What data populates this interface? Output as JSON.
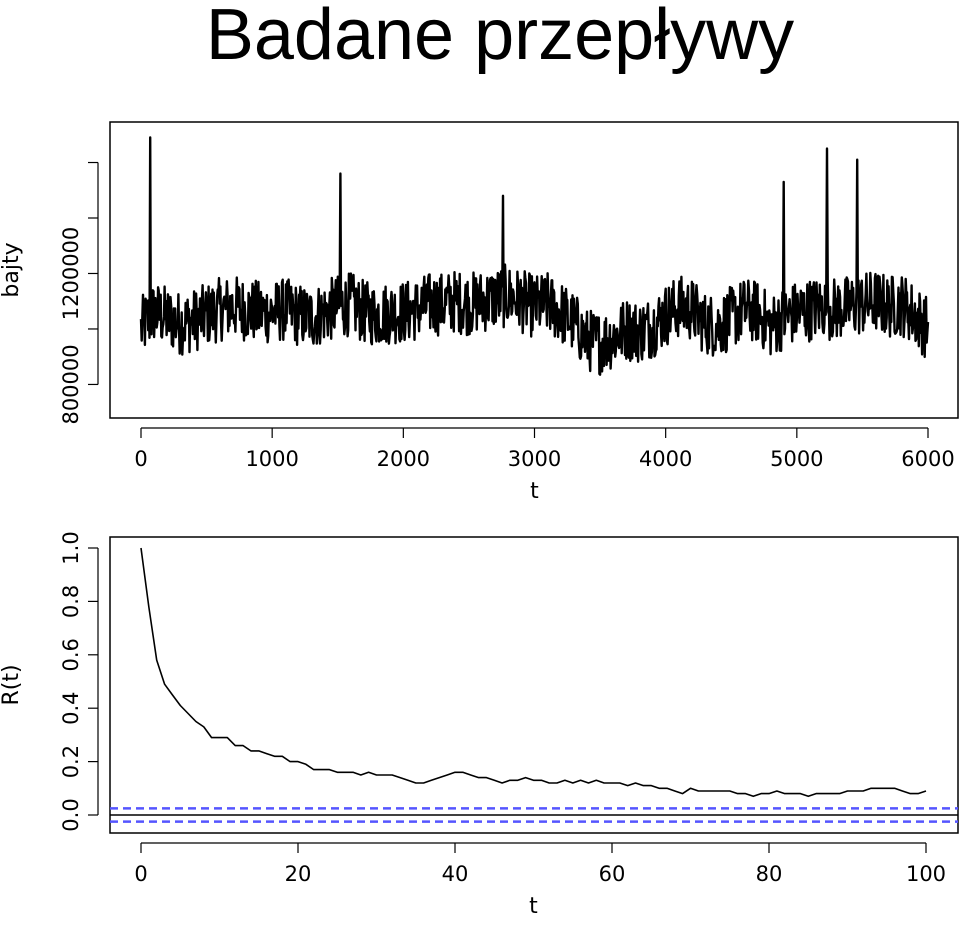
{
  "title": "Badane przepływy",
  "chart_data": [
    {
      "type": "line",
      "xlabel": "t",
      "ylabel": "bajty",
      "xlim": [
        0,
        6000
      ],
      "ylim": [
        780000,
        1400000
      ],
      "x_ticks": [
        0,
        1000,
        2000,
        3000,
        4000,
        5000,
        6000
      ],
      "y_ticks": [
        800000,
        1000000,
        1200000,
        1400000,
        1600000
      ],
      "y_tick_labels": [
        "800000",
        "",
        "1200000",
        "",
        ""
      ],
      "series": [
        {
          "x": [
            0,
            100,
            200,
            300,
            400,
            500,
            600,
            700,
            800,
            900,
            1000,
            1100,
            1200,
            1300,
            1400,
            1500,
            1600,
            1700,
            1800,
            1900,
            2000,
            2100,
            2200,
            2300,
            2400,
            2500,
            2600,
            2700,
            2800,
            2900,
            3000,
            3100,
            3200,
            3300,
            3400,
            3500,
            3600,
            3700,
            3800,
            3900,
            4000,
            4100,
            4200,
            4300,
            4400,
            4500,
            4600,
            4700,
            4800,
            4900,
            5000,
            5100,
            5200,
            5300,
            5400,
            5500,
            5600,
            5700,
            5800,
            5900,
            6000
          ],
          "values": [
            1000000,
            1060000,
            1040000,
            1020000,
            1030000,
            1050000,
            1070000,
            1080000,
            1070000,
            1060000,
            1060000,
            1070000,
            1050000,
            1040000,
            1060000,
            1080000,
            1090000,
            1060000,
            1050000,
            1060000,
            1060000,
            1070000,
            1090000,
            1090000,
            1100000,
            1090000,
            1100000,
            1110000,
            1120000,
            1100000,
            1080000,
            1090000,
            1060000,
            1020000,
            960000,
            950000,
            970000,
            1000000,
            990000,
            1010000,
            1050000,
            1080000,
            1070000,
            1020000,
            1010000,
            1040000,
            1070000,
            1060000,
            1010000,
            1040000,
            1060000,
            1070000,
            1080000,
            1070000,
            1080000,
            1090000,
            1100000,
            1080000,
            1090000,
            1050000,
            1000000
          ],
          "spikes": [
            {
              "x": 70,
              "value": 1690000
            },
            {
              "x": 1520,
              "value": 1560000
            },
            {
              "x": 2760,
              "value": 1480000
            },
            {
              "x": 4900,
              "value": 1530000
            },
            {
              "x": 5230,
              "value": 1650000
            },
            {
              "x": 5460,
              "value": 1610000
            }
          ]
        }
      ]
    },
    {
      "type": "line",
      "xlabel": "t",
      "ylabel": "R(t)",
      "xlim": [
        0,
        100
      ],
      "ylim": [
        0,
        1.0
      ],
      "x_ticks": [
        0,
        20,
        40,
        60,
        80,
        100
      ],
      "y_ticks": [
        0.0,
        0.2,
        0.4,
        0.6,
        0.8,
        1.0
      ],
      "y_tick_labels": [
        "0.0",
        "0.2",
        "0.4",
        "0.6",
        "0.8",
        "1.0"
      ],
      "series": [
        {
          "x": [
            0,
            1,
            2,
            3,
            4,
            5,
            6,
            7,
            8,
            9,
            10,
            11,
            12,
            13,
            14,
            15,
            16,
            17,
            18,
            19,
            20,
            21,
            22,
            23,
            24,
            25,
            26,
            27,
            28,
            29,
            30,
            31,
            32,
            33,
            34,
            35,
            36,
            37,
            38,
            39,
            40,
            41,
            42,
            43,
            44,
            45,
            46,
            47,
            48,
            49,
            50,
            51,
            52,
            53,
            54,
            55,
            56,
            57,
            58,
            59,
            60,
            61,
            62,
            63,
            64,
            65,
            66,
            67,
            68,
            69,
            70,
            71,
            72,
            73,
            74,
            75,
            76,
            77,
            78,
            79,
            80,
            81,
            82,
            83,
            84,
            85,
            86,
            87,
            88,
            89,
            90,
            91,
            92,
            93,
            94,
            95,
            96,
            97,
            98,
            99,
            100
          ],
          "values": [
            1.0,
            0.78,
            0.58,
            0.49,
            0.45,
            0.41,
            0.38,
            0.35,
            0.33,
            0.29,
            0.29,
            0.29,
            0.26,
            0.26,
            0.24,
            0.24,
            0.23,
            0.22,
            0.22,
            0.2,
            0.2,
            0.19,
            0.17,
            0.17,
            0.17,
            0.16,
            0.16,
            0.16,
            0.15,
            0.16,
            0.15,
            0.15,
            0.15,
            0.14,
            0.13,
            0.12,
            0.12,
            0.13,
            0.14,
            0.15,
            0.16,
            0.16,
            0.15,
            0.14,
            0.14,
            0.13,
            0.12,
            0.13,
            0.13,
            0.14,
            0.13,
            0.13,
            0.12,
            0.12,
            0.13,
            0.12,
            0.13,
            0.12,
            0.13,
            0.12,
            0.12,
            0.12,
            0.11,
            0.12,
            0.11,
            0.11,
            0.1,
            0.1,
            0.09,
            0.08,
            0.1,
            0.09,
            0.09,
            0.09,
            0.09,
            0.09,
            0.08,
            0.08,
            0.07,
            0.08,
            0.08,
            0.09,
            0.08,
            0.08,
            0.08,
            0.07,
            0.08,
            0.08,
            0.08,
            0.08,
            0.09,
            0.09,
            0.09,
            0.1,
            0.1,
            0.1,
            0.1,
            0.09,
            0.08,
            0.08,
            0.09
          ]
        }
      ],
      "reference_lines": [
        0.0,
        0.025,
        -0.025
      ],
      "reference_color": "#5555ff"
    }
  ]
}
